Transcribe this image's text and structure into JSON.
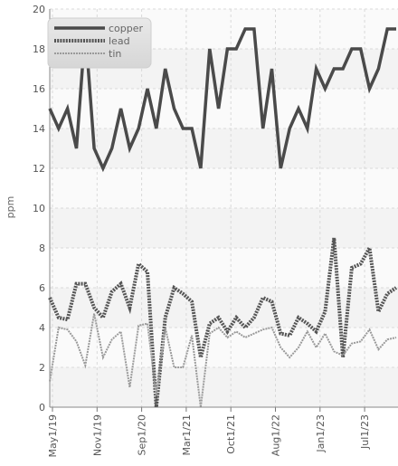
{
  "chart_data": {
    "type": "line",
    "ylabel": "ppm",
    "xlabel": "",
    "ylim": [
      0,
      20
    ],
    "yticks": [
      0,
      2,
      4,
      6,
      8,
      10,
      12,
      14,
      16,
      18,
      20
    ],
    "x_tick_labels": [
      "May1/19",
      "Nov1/19",
      "Sep1/20",
      "Mar1/21",
      "Oct1/21",
      "Aug1/22",
      "Jan1/23",
      "Jul1/23"
    ],
    "grid": true,
    "legend_position": "top-left",
    "series": [
      {
        "name": "copper",
        "color": "#4a4a4a",
        "values": [
          15,
          14,
          15,
          13,
          19,
          13,
          12,
          13,
          15,
          13,
          14,
          16,
          14,
          17,
          15,
          14,
          14,
          12,
          18,
          15,
          18,
          18,
          19,
          19,
          14,
          17,
          12,
          14,
          15,
          14,
          17,
          16,
          17,
          17,
          18,
          18,
          16,
          17,
          19,
          19
        ]
      },
      {
        "name": "lead",
        "color": "#555555",
        "values": [
          5.5,
          4.5,
          4.4,
          6.2,
          6.2,
          5,
          4.5,
          5.8,
          6.2,
          5,
          7.2,
          6.8,
          0,
          4.5,
          6,
          5.7,
          5.3,
          2.5,
          4.2,
          4.5,
          3.8,
          4.5,
          4,
          4.5,
          5.5,
          5.3,
          3.7,
          3.6,
          4.5,
          4.2,
          3.8,
          4.8,
          8.5,
          2.5,
          7,
          7.2,
          8,
          4.8,
          5.7,
          6
        ]
      },
      {
        "name": "tin",
        "color": "#9a9a9a",
        "values": [
          1.3,
          4,
          3.9,
          3.3,
          2.1,
          4.7,
          2.5,
          3.4,
          3.8,
          1,
          4.1,
          4.2,
          0.6,
          4,
          2,
          2,
          3.6,
          0,
          3.7,
          4,
          3.5,
          3.8,
          3.5,
          3.7,
          3.9,
          4,
          3,
          2.5,
          3,
          3.8,
          3,
          3.7,
          2.8,
          2.6,
          3.2,
          3.3,
          3.9,
          2.9,
          3.4,
          3.5
        ]
      }
    ]
  }
}
